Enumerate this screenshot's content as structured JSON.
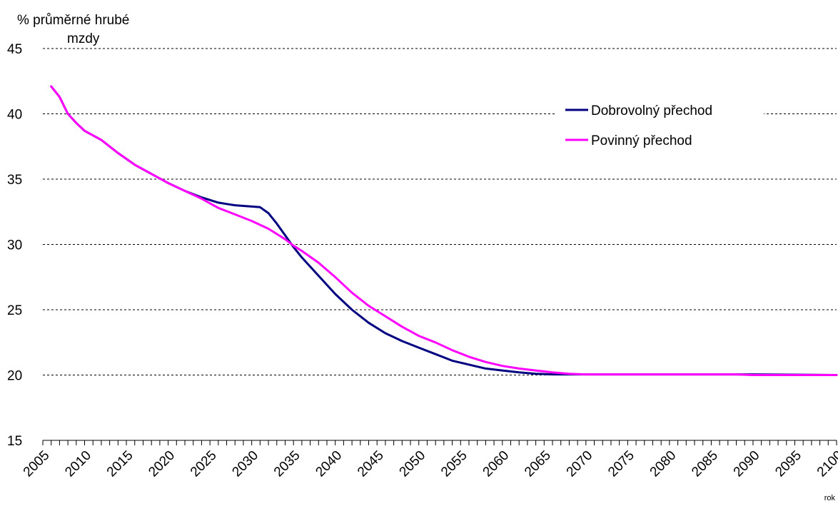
{
  "chart_data": {
    "type": "line",
    "ylabel_line1": "% průměrné hrubé",
    "ylabel_line2": "mzdy",
    "xlabel": "rok",
    "ylim": [
      15,
      45
    ],
    "yticks": [
      15,
      20,
      25,
      30,
      35,
      40,
      45
    ],
    "xlim": [
      2005,
      2100
    ],
    "xticks": [
      2005,
      2010,
      2015,
      2020,
      2025,
      2030,
      2035,
      2040,
      2045,
      2050,
      2055,
      2060,
      2065,
      2070,
      2075,
      2080,
      2085,
      2090,
      2095,
      2100
    ],
    "grid": "horizontal-dashed",
    "legend_position": "top-right",
    "series": [
      {
        "name": "Dobrovolný přechod",
        "color": "#000080",
        "x": [
          2006,
          2007,
          2008,
          2009,
          2010,
          2012,
          2014,
          2016,
          2018,
          2020,
          2022,
          2024,
          2026,
          2027,
          2028,
          2030,
          2031,
          2032,
          2033,
          2034,
          2035,
          2036,
          2038,
          2040,
          2042,
          2044,
          2046,
          2048,
          2050,
          2052,
          2054,
          2056,
          2058,
          2060,
          2062,
          2064,
          2066,
          2068,
          2070,
          2080,
          2090,
          2100
        ],
        "values": [
          42.1,
          41.3,
          40.0,
          39.3,
          38.7,
          38.0,
          37.0,
          36.1,
          35.4,
          34.7,
          34.1,
          33.6,
          33.2,
          33.1,
          33.0,
          32.9,
          32.85,
          32.4,
          31.6,
          30.7,
          29.8,
          29.0,
          27.6,
          26.2,
          25.0,
          24.0,
          23.2,
          22.6,
          22.1,
          21.6,
          21.1,
          20.8,
          20.5,
          20.35,
          20.2,
          20.1,
          20.05,
          20.05,
          20.05,
          20.05,
          20.05,
          20.0
        ]
      },
      {
        "name": "Povinný přechod",
        "color": "#ff00ff",
        "x": [
          2006,
          2007,
          2008,
          2009,
          2010,
          2012,
          2014,
          2016,
          2018,
          2020,
          2022,
          2024,
          2026,
          2028,
          2030,
          2032,
          2034,
          2035,
          2036,
          2038,
          2040,
          2042,
          2044,
          2046,
          2048,
          2050,
          2052,
          2054,
          2056,
          2058,
          2060,
          2062,
          2064,
          2066,
          2068,
          2070,
          2080,
          2088,
          2090,
          2100
        ],
        "values": [
          42.1,
          41.3,
          40.0,
          39.3,
          38.7,
          38.0,
          37.0,
          36.1,
          35.4,
          34.7,
          34.1,
          33.5,
          32.8,
          32.3,
          31.8,
          31.2,
          30.4,
          29.9,
          29.5,
          28.6,
          27.5,
          26.3,
          25.3,
          24.5,
          23.7,
          23.0,
          22.5,
          21.9,
          21.4,
          21.0,
          20.7,
          20.5,
          20.35,
          20.2,
          20.1,
          20.05,
          20.05,
          20.05,
          20.0,
          20.0
        ]
      }
    ]
  }
}
